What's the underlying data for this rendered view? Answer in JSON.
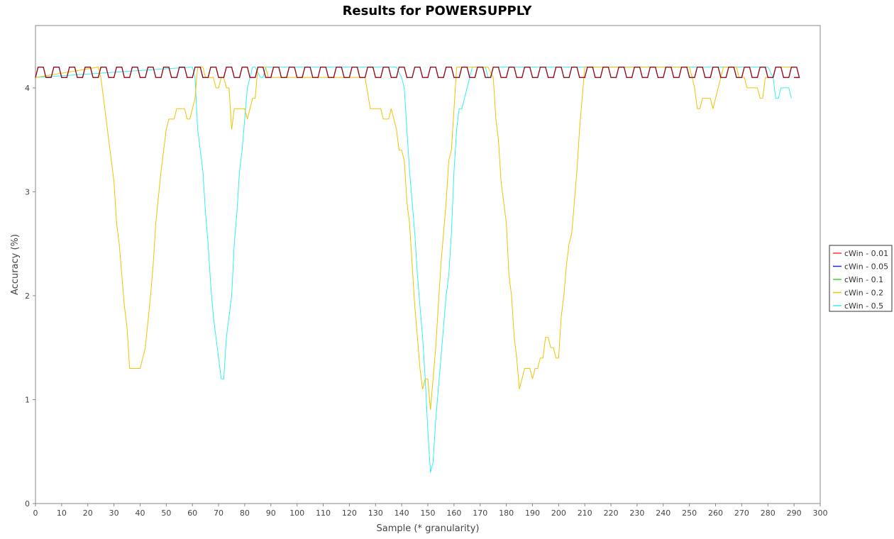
{
  "chart_data": {
    "type": "line",
    "title": "Results for POWERSUPPLY",
    "xlabel": "Sample (* granularity)",
    "ylabel": "Accuracy (%)",
    "xlim": [
      0,
      300
    ],
    "ylim": [
      0,
      4.6
    ],
    "x_ticks": [
      0,
      10,
      20,
      30,
      40,
      50,
      60,
      70,
      80,
      90,
      100,
      110,
      120,
      130,
      140,
      150,
      160,
      170,
      180,
      190,
      200,
      210,
      220,
      230,
      240,
      250,
      260,
      270,
      280,
      290,
      300
    ],
    "y_ticks": [
      0,
      1,
      2,
      3,
      4
    ],
    "grid": false,
    "legend_position": "right",
    "series": [
      {
        "name": "cWin - 0.01",
        "color": "#ff3333",
        "pattern": {
          "type": "square_wave",
          "x_start": 0,
          "x_end": 290,
          "period": 6,
          "low": 4.1,
          "high": 4.2
        }
      },
      {
        "name": "cWin - 0.05",
        "color": "#2222ee",
        "pattern": {
          "type": "square_wave",
          "x_start": 0,
          "x_end": 290,
          "period": 6,
          "low": 4.1,
          "high": 4.2
        }
      },
      {
        "name": "cWin - 0.1",
        "color": "#33dd33",
        "pattern": {
          "type": "square_wave",
          "x_start": 0,
          "x_end": 290,
          "period": 6,
          "low": 4.1,
          "high": 4.2
        }
      },
      {
        "name": "cWin - 0.2",
        "color": "#f2c200",
        "points": [
          [
            0,
            4.1
          ],
          [
            24,
            4.2
          ],
          [
            25,
            4.1
          ],
          [
            26,
            3.9
          ],
          [
            28,
            3.5
          ],
          [
            29,
            3.3
          ],
          [
            30,
            3.1
          ],
          [
            31,
            2.7
          ],
          [
            32,
            2.5
          ],
          [
            33,
            2.2
          ],
          [
            34,
            1.9
          ],
          [
            35,
            1.7
          ],
          [
            36,
            1.3
          ],
          [
            40,
            1.3
          ],
          [
            42,
            1.5
          ],
          [
            44,
            2.0
          ],
          [
            45,
            2.3
          ],
          [
            46,
            2.7
          ],
          [
            48,
            3.2
          ],
          [
            50,
            3.6
          ],
          [
            51,
            3.7
          ],
          [
            53,
            3.7
          ],
          [
            54,
            3.8
          ],
          [
            57,
            3.8
          ],
          [
            58,
            3.7
          ],
          [
            59,
            3.7
          ],
          [
            60,
            3.8
          ],
          [
            61,
            3.9
          ],
          [
            62,
            4.2
          ],
          [
            64,
            4.2
          ],
          [
            65,
            4.1
          ],
          [
            68,
            4.1
          ],
          [
            69,
            4.0
          ],
          [
            70,
            4.0
          ],
          [
            71,
            4.1
          ],
          [
            72,
            4.1
          ],
          [
            73,
            4.0
          ],
          [
            74,
            4.0
          ],
          [
            75,
            3.6
          ],
          [
            76,
            3.8
          ],
          [
            80,
            3.8
          ],
          [
            81,
            3.7
          ],
          [
            82,
            3.8
          ],
          [
            83,
            3.9
          ],
          [
            84,
            3.9
          ],
          [
            85,
            4.2
          ],
          [
            88,
            4.2
          ],
          [
            89,
            4.1
          ],
          [
            126,
            4.1
          ],
          [
            128,
            3.8
          ],
          [
            132,
            3.8
          ],
          [
            133,
            3.7
          ],
          [
            135,
            3.7
          ],
          [
            136,
            3.8
          ],
          [
            138,
            3.6
          ],
          [
            139,
            3.4
          ],
          [
            140,
            3.4
          ],
          [
            141,
            3.3
          ],
          [
            142,
            2.9
          ],
          [
            143,
            2.7
          ],
          [
            144,
            2.3
          ],
          [
            145,
            1.9
          ],
          [
            146,
            1.6
          ],
          [
            147,
            1.3
          ],
          [
            148,
            1.1
          ],
          [
            149,
            1.2
          ],
          [
            150,
            1.2
          ],
          [
            151,
            0.9
          ],
          [
            152,
            1.2
          ],
          [
            153,
            1.5
          ],
          [
            154,
            1.9
          ],
          [
            155,
            2.3
          ],
          [
            156,
            2.6
          ],
          [
            157,
            2.9
          ],
          [
            158,
            3.3
          ],
          [
            159,
            3.4
          ],
          [
            160,
            3.8
          ],
          [
            161,
            4.2
          ],
          [
            162,
            4.2
          ],
          [
            173,
            4.2
          ],
          [
            175,
            4.1
          ],
          [
            176,
            3.7
          ],
          [
            177,
            3.5
          ],
          [
            178,
            3.1
          ],
          [
            179,
            2.9
          ],
          [
            180,
            2.7
          ],
          [
            181,
            2.2
          ],
          [
            182,
            2.0
          ],
          [
            183,
            1.6
          ],
          [
            184,
            1.4
          ],
          [
            185,
            1.1
          ],
          [
            186,
            1.2
          ],
          [
            187,
            1.3
          ],
          [
            189,
            1.3
          ],
          [
            190,
            1.2
          ],
          [
            191,
            1.3
          ],
          [
            192,
            1.3
          ],
          [
            193,
            1.4
          ],
          [
            194,
            1.4
          ],
          [
            195,
            1.6
          ],
          [
            196,
            1.6
          ],
          [
            197,
            1.5
          ],
          [
            198,
            1.5
          ],
          [
            199,
            1.4
          ],
          [
            200,
            1.4
          ],
          [
            201,
            1.8
          ],
          [
            202,
            2.0
          ],
          [
            203,
            2.3
          ],
          [
            204,
            2.5
          ],
          [
            205,
            2.6
          ],
          [
            206,
            2.9
          ],
          [
            207,
            3.2
          ],
          [
            208,
            3.6
          ],
          [
            209,
            3.9
          ],
          [
            210,
            4.2
          ],
          [
            250,
            4.2
          ],
          [
            251,
            4.1
          ],
          [
            252,
            4.0
          ],
          [
            253,
            3.8
          ],
          [
            254,
            3.8
          ],
          [
            255,
            3.9
          ],
          [
            258,
            3.9
          ],
          [
            259,
            3.8
          ],
          [
            260,
            3.9
          ],
          [
            263,
            4.2
          ],
          [
            268,
            4.2
          ],
          [
            269,
            4.1
          ],
          [
            271,
            4.1
          ],
          [
            272,
            4.0
          ],
          [
            276,
            4.0
          ],
          [
            277,
            3.9
          ],
          [
            278,
            3.9
          ],
          [
            279,
            4.1
          ],
          [
            282,
            4.1
          ],
          [
            283,
            4.2
          ],
          [
            290,
            4.2
          ]
        ]
      },
      {
        "name": "cWin - 0.5",
        "color": "#33f0f0",
        "points": [
          [
            0,
            4.1
          ],
          [
            60,
            4.2
          ],
          [
            61,
            4.1
          ],
          [
            62,
            3.6
          ],
          [
            63,
            3.4
          ],
          [
            64,
            3.2
          ],
          [
            65,
            2.8
          ],
          [
            66,
            2.5
          ],
          [
            67,
            2.1
          ],
          [
            68,
            1.8
          ],
          [
            69,
            1.6
          ],
          [
            70,
            1.4
          ],
          [
            71,
            1.2
          ],
          [
            72,
            1.2
          ],
          [
            73,
            1.6
          ],
          [
            74,
            1.8
          ],
          [
            75,
            2.0
          ],
          [
            76,
            2.5
          ],
          [
            77,
            2.8
          ],
          [
            78,
            3.2
          ],
          [
            79,
            3.4
          ],
          [
            80,
            3.7
          ],
          [
            81,
            4.0
          ],
          [
            82,
            4.1
          ],
          [
            83,
            4.2
          ],
          [
            84,
            4.2
          ],
          [
            86,
            4.1
          ],
          [
            87,
            4.1
          ],
          [
            88,
            4.2
          ],
          [
            89,
            4.2
          ],
          [
            138,
            4.2
          ],
          [
            140,
            4.1
          ],
          [
            141,
            4.0
          ],
          [
            142,
            3.6
          ],
          [
            143,
            3.2
          ],
          [
            144,
            2.9
          ],
          [
            145,
            2.6
          ],
          [
            146,
            2.2
          ],
          [
            147,
            1.9
          ],
          [
            148,
            1.6
          ],
          [
            149,
            1.2
          ],
          [
            150,
            0.7
          ],
          [
            151,
            0.3
          ],
          [
            152,
            0.4
          ],
          [
            153,
            0.8
          ],
          [
            154,
            1.1
          ],
          [
            155,
            1.4
          ],
          [
            156,
            1.7
          ],
          [
            157,
            2.0
          ],
          [
            158,
            2.2
          ],
          [
            159,
            2.6
          ],
          [
            160,
            3.2
          ],
          [
            161,
            3.6
          ],
          [
            162,
            3.8
          ],
          [
            163,
            3.8
          ],
          [
            164,
            3.9
          ],
          [
            165,
            4.0
          ],
          [
            166,
            4.1
          ],
          [
            167,
            4.2
          ],
          [
            172,
            4.2
          ],
          [
            173,
            4.1
          ],
          [
            174,
            4.1
          ],
          [
            175,
            4.2
          ],
          [
            184,
            4.2
          ],
          [
            280,
            4.2
          ],
          [
            282,
            4.1
          ],
          [
            283,
            3.9
          ],
          [
            284,
            3.9
          ],
          [
            285,
            4.0
          ],
          [
            288,
            4.0
          ],
          [
            289,
            3.9
          ]
        ]
      }
    ]
  }
}
